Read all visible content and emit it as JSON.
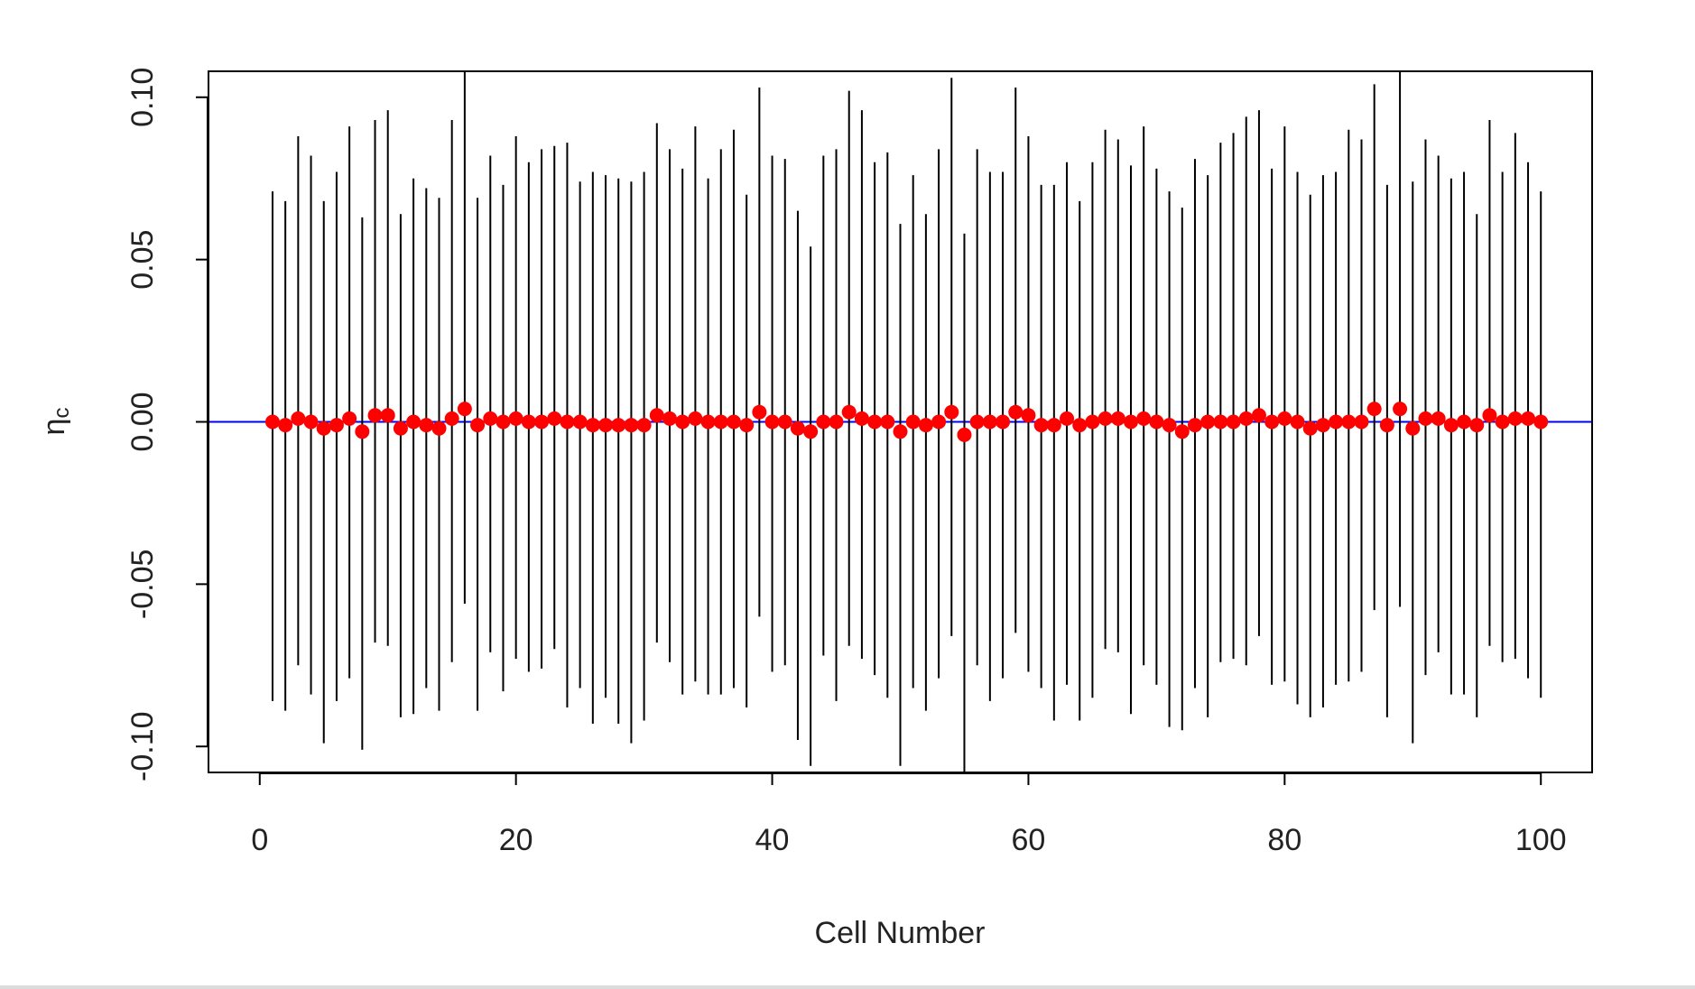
{
  "chart_data": {
    "type": "errorbar",
    "xlabel": "Cell Number",
    "ylabel": "η",
    "ylabel_subscript": "c",
    "point_color": "red",
    "bar_color": "black",
    "reference_line": {
      "value": 0,
      "color": "blue"
    },
    "xlim": [
      -4,
      104
    ],
    "ylim": [
      -0.108,
      0.108
    ],
    "xticks": [
      0,
      20,
      40,
      60,
      80,
      100
    ],
    "yticks": [
      {
        "value": -0.1,
        "label": "-0.10"
      },
      -0.05,
      {
        "value": 0,
        "label": "0.00"
      },
      0.05,
      {
        "value": 0.1,
        "label": "0.10"
      }
    ],
    "x": [
      1,
      2,
      3,
      4,
      5,
      6,
      7,
      8,
      9,
      10,
      11,
      12,
      13,
      14,
      15,
      16,
      17,
      18,
      19,
      20,
      21,
      22,
      23,
      24,
      25,
      26,
      27,
      28,
      29,
      30,
      31,
      32,
      33,
      34,
      35,
      36,
      37,
      38,
      39,
      40,
      41,
      42,
      43,
      44,
      45,
      46,
      47,
      48,
      49,
      50,
      51,
      52,
      53,
      54,
      55,
      56,
      57,
      58,
      59,
      60,
      61,
      62,
      63,
      64,
      65,
      66,
      67,
      68,
      69,
      70,
      71,
      72,
      73,
      74,
      75,
      76,
      77,
      78,
      79,
      80,
      81,
      82,
      83,
      84,
      85,
      86,
      87,
      88,
      89,
      90,
      91,
      92,
      93,
      94,
      95,
      96,
      97,
      98,
      99,
      100
    ],
    "values": [
      0,
      -0.001,
      0.001,
      0,
      -0.002,
      -0.001,
      0.001,
      -0.003,
      0.002,
      0.002,
      -0.002,
      0,
      -0.001,
      -0.002,
      0.001,
      0.004,
      -0.001,
      0.001,
      0,
      0.001,
      0,
      0,
      0.001,
      0,
      0,
      -0.001,
      -0.001,
      -0.001,
      -0.001,
      -0.001,
      0.002,
      0.001,
      0,
      0.001,
      0,
      0,
      0,
      -0.001,
      0.003,
      0,
      0,
      -0.002,
      -0.003,
      0,
      0,
      0.003,
      0.001,
      0,
      0,
      -0.003,
      0,
      -0.001,
      0,
      0.003,
      -0.004,
      0,
      0,
      0,
      0.003,
      0.002,
      -0.001,
      -0.001,
      0.001,
      -0.001,
      0,
      0.001,
      0.001,
      0,
      0.001,
      0,
      -0.001,
      -0.003,
      -0.001,
      0,
      0,
      0,
      0.001,
      0.002,
      0,
      0.001,
      0,
      -0.002,
      -0.001,
      0,
      0,
      0,
      0.004,
      -0.001,
      0.004,
      -0.002,
      0.001,
      0.001,
      -0.001,
      0,
      -0.001,
      0.002,
      0,
      0.001,
      0.001,
      0
    ],
    "upper": [
      0.071,
      0.068,
      0.088,
      0.082,
      0.068,
      0.077,
      0.091,
      0.063,
      0.093,
      0.096,
      0.064,
      0.075,
      0.072,
      0.069,
      0.093,
      0.112,
      0.069,
      0.082,
      0.073,
      0.088,
      0.08,
      0.084,
      0.085,
      0.086,
      0.074,
      0.077,
      0.076,
      0.075,
      0.074,
      0.077,
      0.092,
      0.084,
      0.078,
      0.091,
      0.075,
      0.084,
      0.09,
      0.07,
      0.103,
      0.082,
      0.081,
      0.065,
      0.054,
      0.082,
      0.084,
      0.102,
      0.096,
      0.08,
      0.083,
      0.061,
      0.076,
      0.064,
      0.084,
      0.106,
      0.058,
      0.084,
      0.077,
      0.077,
      0.103,
      0.088,
      0.073,
      0.073,
      0.08,
      0.068,
      0.08,
      0.09,
      0.087,
      0.079,
      0.091,
      0.078,
      0.071,
      0.066,
      0.081,
      0.076,
      0.086,
      0.089,
      0.094,
      0.096,
      0.078,
      0.091,
      0.077,
      0.07,
      0.076,
      0.077,
      0.09,
      0.087,
      0.104,
      0.073,
      0.112,
      0.074,
      0.087,
      0.082,
      0.075,
      0.077,
      0.064,
      0.093,
      0.077,
      0.089,
      0.08,
      0.071
    ],
    "lower": [
      -0.086,
      -0.089,
      -0.075,
      -0.084,
      -0.099,
      -0.086,
      -0.079,
      -0.101,
      -0.068,
      -0.069,
      -0.091,
      -0.09,
      -0.082,
      -0.089,
      -0.074,
      -0.056,
      -0.089,
      -0.071,
      -0.083,
      -0.073,
      -0.077,
      -0.076,
      -0.07,
      -0.088,
      -0.082,
      -0.093,
      -0.085,
      -0.093,
      -0.099,
      -0.092,
      -0.068,
      -0.074,
      -0.084,
      -0.08,
      -0.084,
      -0.084,
      -0.082,
      -0.088,
      -0.06,
      -0.077,
      -0.075,
      -0.098,
      -0.106,
      -0.072,
      -0.086,
      -0.069,
      -0.073,
      -0.078,
      -0.085,
      -0.106,
      -0.082,
      -0.089,
      -0.079,
      -0.066,
      -0.113,
      -0.075,
      -0.086,
      -0.079,
      -0.065,
      -0.077,
      -0.082,
      -0.092,
      -0.081,
      -0.092,
      -0.085,
      -0.07,
      -0.071,
      -0.09,
      -0.075,
      -0.081,
      -0.094,
      -0.095,
      -0.082,
      -0.091,
      -0.074,
      -0.073,
      -0.075,
      -0.066,
      -0.081,
      -0.08,
      -0.087,
      -0.091,
      -0.088,
      -0.081,
      -0.08,
      -0.077,
      -0.058,
      -0.091,
      -0.057,
      -0.099,
      -0.078,
      -0.071,
      -0.084,
      -0.084,
      -0.091,
      -0.069,
      -0.074,
      -0.073,
      -0.079,
      -0.085
    ]
  }
}
